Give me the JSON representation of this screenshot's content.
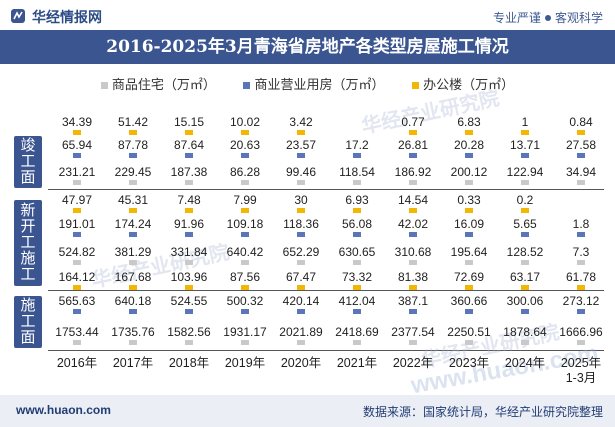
{
  "header": {
    "brand": "华经情报网",
    "slogan_left": "专业严谨",
    "slogan_right": "客观科学"
  },
  "footer": {
    "site": "www.huaon.com",
    "source": "数据来源：国家统计局，华经产业研究院整理"
  },
  "watermark": {
    "text": "华经产业研究院",
    "url": "www.huaon.com"
  },
  "colors": {
    "title_bg": "#3b5590",
    "residential": "#c9c9c9",
    "commercial": "#5b76b8",
    "office": "#f2b705"
  },
  "sections": [
    {
      "id": "completed",
      "label_chars": [
        "竣",
        "工",
        "面"
      ]
    },
    {
      "id": "new_start",
      "label_chars": [
        "新",
        "开",
        "工",
        "施",
        "工"
      ]
    },
    {
      "id": "construction",
      "label_chars": [
        "施",
        "工",
        "面"
      ]
    }
  ],
  "chart_data": {
    "type": "table",
    "title": "2016-2025年3月青海省房地产各类型房屋施工情况",
    "legend": [
      "商品住宅（万㎡）",
      "商业营业用房（万㎡）",
      "办公楼（万㎡）"
    ],
    "categories": [
      "2016年",
      "2017年",
      "2018年",
      "2019年",
      "2020年",
      "2021年",
      "2022年",
      "2023年",
      "2024年",
      "2025年"
    ],
    "last_category_sub": "1-3月",
    "rows": [
      {
        "section": "completed",
        "series": "办公楼（万㎡）",
        "values": [
          "34.39",
          "51.42",
          "15.15",
          "10.02",
          "3.42",
          "",
          "0.77",
          "6.83",
          "1",
          "0.84"
        ]
      },
      {
        "section": "completed",
        "series": "商业营业用房（万㎡）",
        "values": [
          "65.94",
          "87.78",
          "87.64",
          "20.63",
          "23.57",
          "17.2",
          "26.81",
          "20.28",
          "13.71",
          "27.58"
        ]
      },
      {
        "section": "completed",
        "series": "商品住宅（万㎡）",
        "values": [
          "231.21",
          "229.45",
          "187.38",
          "86.28",
          "99.46",
          "118.54",
          "186.92",
          "200.12",
          "122.94",
          "34.94"
        ]
      },
      {
        "section": "new_start",
        "series": "办公楼（万㎡）",
        "values": [
          "47.97",
          "45.31",
          "7.48",
          "7.99",
          "30",
          "6.93",
          "14.54",
          "0.33",
          "0.2",
          ""
        ]
      },
      {
        "section": "new_start",
        "series": "商业营业用房（万㎡）",
        "values": [
          "191.01",
          "174.24",
          "91.96",
          "109.18",
          "118.36",
          "56.08",
          "42.02",
          "16.09",
          "5.65",
          "1.8"
        ]
      },
      {
        "section": "new_start",
        "series": "商品住宅（万㎡）",
        "values": [
          "524.82",
          "381.29",
          "331.84",
          "640.42",
          "652.29",
          "630.65",
          "310.68",
          "195.64",
          "128.52",
          "7.3"
        ]
      },
      {
        "section": "construction",
        "series": "办公楼（万㎡）",
        "values": [
          "164.12",
          "167.68",
          "103.96",
          "87.56",
          "67.47",
          "73.32",
          "81.38",
          "72.69",
          "63.17",
          "61.78"
        ]
      },
      {
        "section": "construction",
        "series": "商业营业用房（万㎡）",
        "values": [
          "565.63",
          "640.18",
          "524.55",
          "500.32",
          "420.14",
          "412.04",
          "387.1",
          "360.66",
          "300.06",
          "273.12"
        ]
      },
      {
        "section": "construction",
        "series": "商品住宅（万㎡）",
        "values": [
          "1753.44",
          "1735.76",
          "1582.56",
          "1931.17",
          "2021.89",
          "2418.69",
          "2377.54",
          "2250.51",
          "1878.64",
          "1666.96"
        ]
      }
    ]
  }
}
